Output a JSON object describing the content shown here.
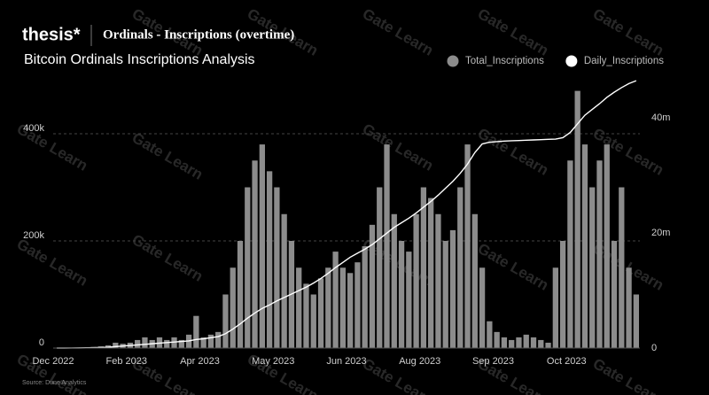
{
  "chart_data": {
    "type": "bar",
    "brand": "thesis*",
    "header": "Ordinals - Inscriptions (overtime)",
    "title": "Bitcoin Ordinals Inscriptions Analysis",
    "source": "Source: Dune Analytics",
    "watermark": "Gate Learn",
    "legend": "top-right",
    "grid": true,
    "categories": [
      "Dec 2022",
      null,
      null,
      null,
      null,
      null,
      null,
      null,
      null,
      null,
      "Feb 2023",
      null,
      null,
      null,
      null,
      null,
      null,
      null,
      null,
      null,
      "Apr 2023",
      null,
      null,
      null,
      null,
      null,
      null,
      null,
      null,
      null,
      "May 2023",
      null,
      null,
      null,
      null,
      null,
      null,
      null,
      null,
      null,
      "Jun 2023",
      null,
      null,
      null,
      null,
      null,
      null,
      null,
      null,
      null,
      "Aug 2023",
      null,
      null,
      null,
      null,
      null,
      null,
      null,
      null,
      null,
      "Sep 2023",
      null,
      null,
      null,
      null,
      null,
      null,
      null,
      null,
      null,
      "Oct 2023",
      null,
      null,
      null,
      null,
      null,
      null,
      null,
      null,
      null
    ],
    "ylim": [
      0,
      500000
    ],
    "yticks": [
      0,
      {
        "value": 200000,
        "label": "200k"
      },
      {
        "value": 400000,
        "label": "400k"
      }
    ],
    "y2lim": [
      0,
      46600000
    ],
    "y2ticks": [
      0,
      {
        "value": 20000000,
        "label": "20m"
      },
      {
        "value": 40000000,
        "label": "40m"
      }
    ],
    "series": [
      {
        "name": "Total_Inscriptions",
        "type": "bar",
        "color": "#8c8c8c",
        "values": [
          0,
          0,
          0,
          500,
          1000,
          2000,
          3000,
          5000,
          10000,
          8000,
          10000,
          15000,
          20000,
          15000,
          20000,
          15000,
          20000,
          15000,
          25000,
          60000,
          20000,
          25000,
          30000,
          100000,
          150000,
          200000,
          300000,
          350000,
          380000,
          330000,
          300000,
          250000,
          200000,
          150000,
          120000,
          100000,
          130000,
          150000,
          180000,
          150000,
          140000,
          160000,
          190000,
          230000,
          300000,
          380000,
          250000,
          200000,
          180000,
          250000,
          300000,
          280000,
          250000,
          200000,
          220000,
          300000,
          380000,
          250000,
          150000,
          50000,
          30000,
          20000,
          15000,
          20000,
          25000,
          20000,
          15000,
          10000,
          150000,
          200000,
          350000,
          480000,
          380000,
          300000,
          350000,
          380000,
          200000,
          300000,
          150000,
          100000
        ]
      },
      {
        "name": "Daily_Inscriptions",
        "type": "line",
        "axis": "y2",
        "color": "#ffffff",
        "values": [
          0,
          0,
          10000,
          20000,
          40000,
          70000,
          100000,
          150000,
          250000,
          350000,
          450000,
          550000,
          650000,
          750000,
          850000,
          950000,
          1050000,
          1150000,
          1250000,
          1500000,
          1600000,
          1800000,
          2000000,
          2500000,
          3300000,
          4200000,
          5200000,
          6100000,
          6900000,
          7500000,
          8200000,
          8800000,
          9400000,
          10000000,
          10600000,
          11300000,
          12100000,
          13000000,
          14000000,
          14900000,
          15800000,
          16500000,
          17200000,
          18000000,
          19000000,
          20000000,
          21000000,
          21800000,
          22600000,
          23500000,
          24500000,
          25500000,
          26600000,
          27800000,
          29000000,
          30400000,
          32000000,
          34000000,
          35500000,
          35800000,
          35900000,
          36000000,
          36050000,
          36100000,
          36150000,
          36200000,
          36250000,
          36300000,
          36350000,
          36600000,
          37500000,
          39000000,
          40500000,
          41500000,
          42500000,
          43600000,
          44500000,
          45300000,
          46000000,
          46500000
        ]
      }
    ]
  }
}
